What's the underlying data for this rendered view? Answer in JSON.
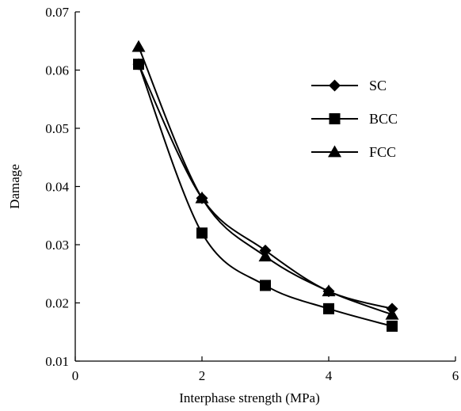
{
  "chart_data": {
    "type": "line",
    "title": "",
    "xlabel": "Interphase strength (MPa)",
    "ylabel": "Damage",
    "xlim": [
      0,
      6
    ],
    "ylim": [
      0.01,
      0.07
    ],
    "xticks": [
      0,
      2,
      4,
      6
    ],
    "xtick_labels": [
      "0",
      "2",
      "4",
      "6"
    ],
    "yticks": [
      0.01,
      0.02,
      0.03,
      0.04,
      0.05,
      0.06,
      0.07
    ],
    "ytick_labels": [
      "0.01",
      "0.02",
      "0.03",
      "0.04",
      "0.05",
      "0.06",
      "0.07"
    ],
    "grid": false,
    "legend_position": "right",
    "series": [
      {
        "name": "SC",
        "marker": "diamond",
        "x": [
          1,
          2,
          3,
          4,
          5
        ],
        "y": [
          0.061,
          0.038,
          0.029,
          0.022,
          0.019
        ]
      },
      {
        "name": "BCC",
        "marker": "square",
        "x": [
          1,
          2,
          3,
          4,
          5
        ],
        "y": [
          0.061,
          0.032,
          0.023,
          0.019,
          0.016
        ]
      },
      {
        "name": "FCC",
        "marker": "triangle",
        "x": [
          1,
          2,
          3,
          4,
          5
        ],
        "y": [
          0.064,
          0.038,
          0.028,
          0.022,
          0.018
        ]
      }
    ],
    "colors": {
      "line": "#000000",
      "marker": "#000000"
    }
  }
}
